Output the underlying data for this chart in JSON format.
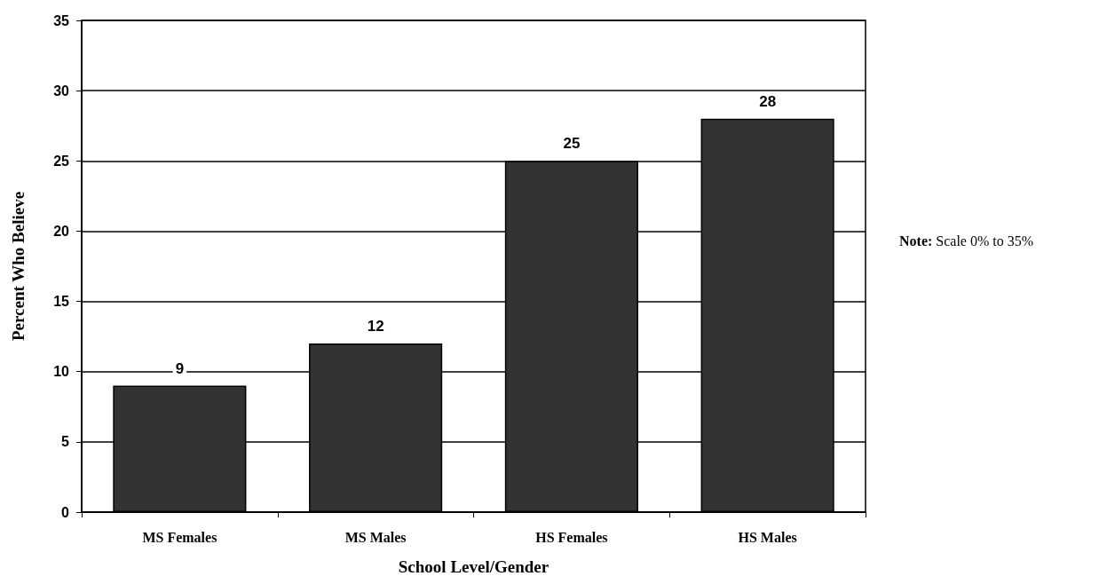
{
  "chart_data": {
    "type": "bar",
    "xlabel": "School Level/Gender",
    "ylabel": "Percent Who Believe",
    "categories": [
      "MS Females",
      "MS Males",
      "HS Females",
      "HS Males"
    ],
    "values": [
      9,
      12,
      25,
      28
    ],
    "color": "#333333",
    "ylim": [
      0,
      35
    ],
    "yticks": [
      0,
      5,
      10,
      15,
      20,
      25,
      30,
      35
    ],
    "grid": "y",
    "data_labels": true,
    "annotations": [
      "Note: Scale 0% to 35%"
    ]
  }
}
